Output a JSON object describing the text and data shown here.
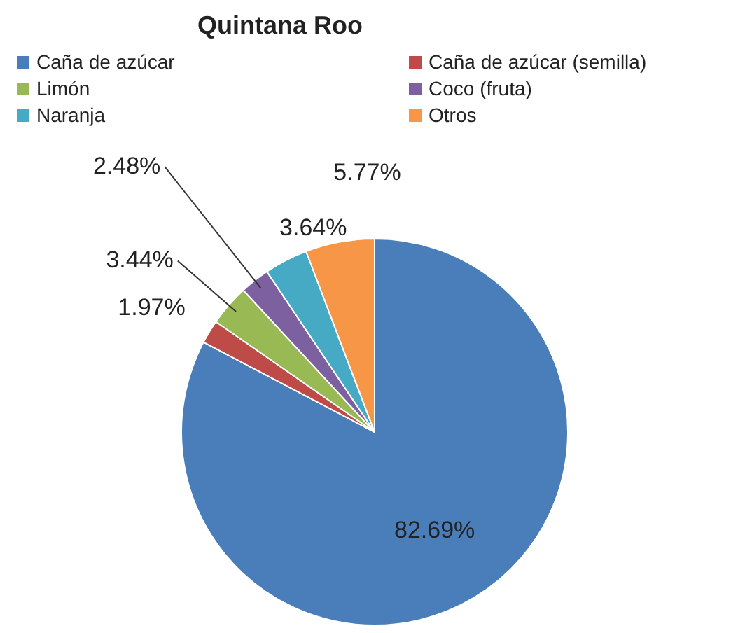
{
  "chart_data": {
    "type": "pie",
    "title": "Quintana Roo",
    "categories": [
      "Caña de azúcar",
      "Caña de azúcar (semilla)",
      "Limón",
      "Coco (fruta)",
      "Naranja",
      "Otros"
    ],
    "values": [
      82.69,
      1.97,
      3.44,
      2.48,
      3.64,
      5.77
    ],
    "colors": [
      "#4a7ebb",
      "#be4b48",
      "#98b954",
      "#7d60a0",
      "#46aac5",
      "#f79646"
    ],
    "value_labels": [
      "82.69%",
      "1.97%",
      "3.44%",
      "2.48%",
      "3.64%",
      "5.77%"
    ],
    "legend": "top"
  }
}
